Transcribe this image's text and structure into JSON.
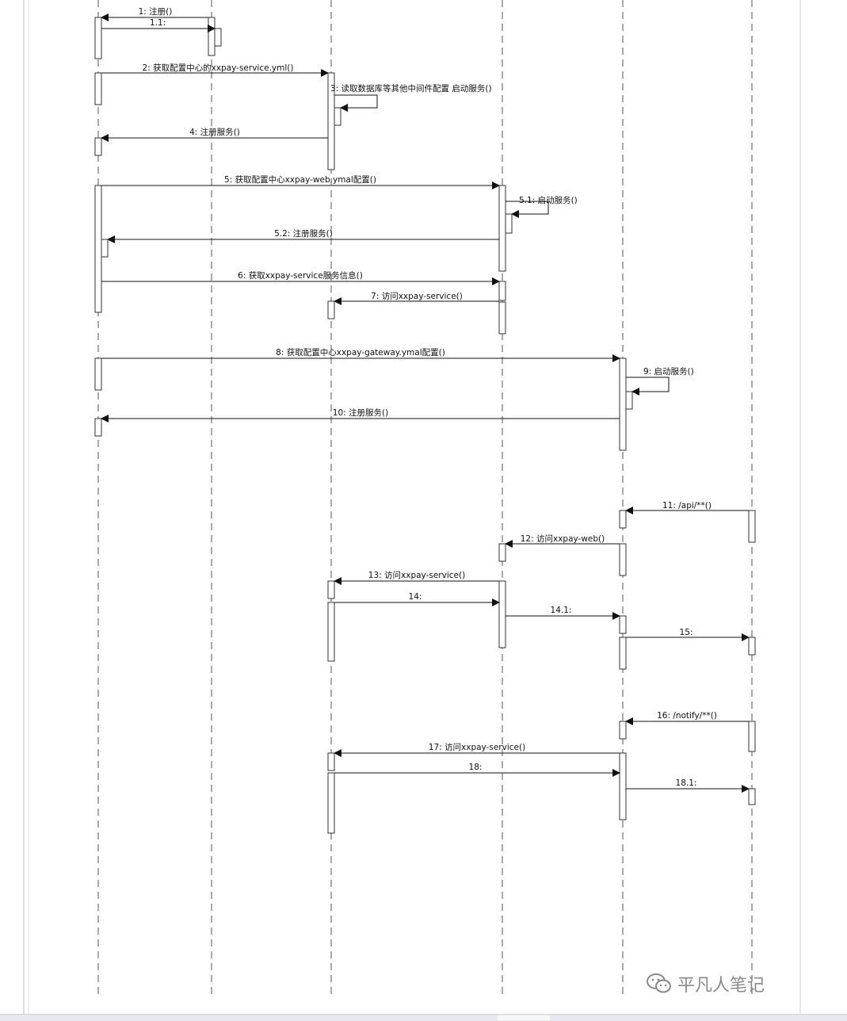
{
  "messages": [
    {
      "id": "m1",
      "label": "1: 注册()"
    },
    {
      "id": "m1_1",
      "label": "1.1:"
    },
    {
      "id": "m2",
      "label": "2: 获取配置中心的xxpay-service.yml()"
    },
    {
      "id": "m3",
      "label": "3: 读取数据库等其他中间件配置 启动服务()"
    },
    {
      "id": "m4",
      "label": "4: 注册服务()"
    },
    {
      "id": "m5",
      "label": "5: 获取配置中心xxpay-web.ymal配置()"
    },
    {
      "id": "m5_1",
      "label": "5.1: 启动服务()"
    },
    {
      "id": "m5_2",
      "label": "5.2: 注册服务()"
    },
    {
      "id": "m6",
      "label": "6: 获取xxpay-service服务信息()"
    },
    {
      "id": "m7",
      "label": "7: 访问xxpay-service()"
    },
    {
      "id": "m8",
      "label": "8: 获取配置中心xxpay-gateway.ymal配置()"
    },
    {
      "id": "m9",
      "label": "9: 启动服务()"
    },
    {
      "id": "m10",
      "label": "10: 注册服务()"
    },
    {
      "id": "m11",
      "label": "11: /api/**()"
    },
    {
      "id": "m12",
      "label": "12: 访问xxpay-web()"
    },
    {
      "id": "m13",
      "label": "13: 访问xxpay-service()"
    },
    {
      "id": "m14",
      "label": "14:"
    },
    {
      "id": "m14_1",
      "label": "14.1:"
    },
    {
      "id": "m15",
      "label": "15:"
    },
    {
      "id": "m16",
      "label": "16: /notify/**()"
    },
    {
      "id": "m17",
      "label": "17: 访问xxpay-service()"
    },
    {
      "id": "m18",
      "label": "18:"
    },
    {
      "id": "m18_1",
      "label": "18.1:"
    }
  ],
  "watermark": {
    "text": "平凡人笔记",
    "icon": "wechat-icon"
  },
  "colors": {
    "line": "#111111",
    "lifeline": "#555555",
    "activation_fill": "#ffffff"
  }
}
